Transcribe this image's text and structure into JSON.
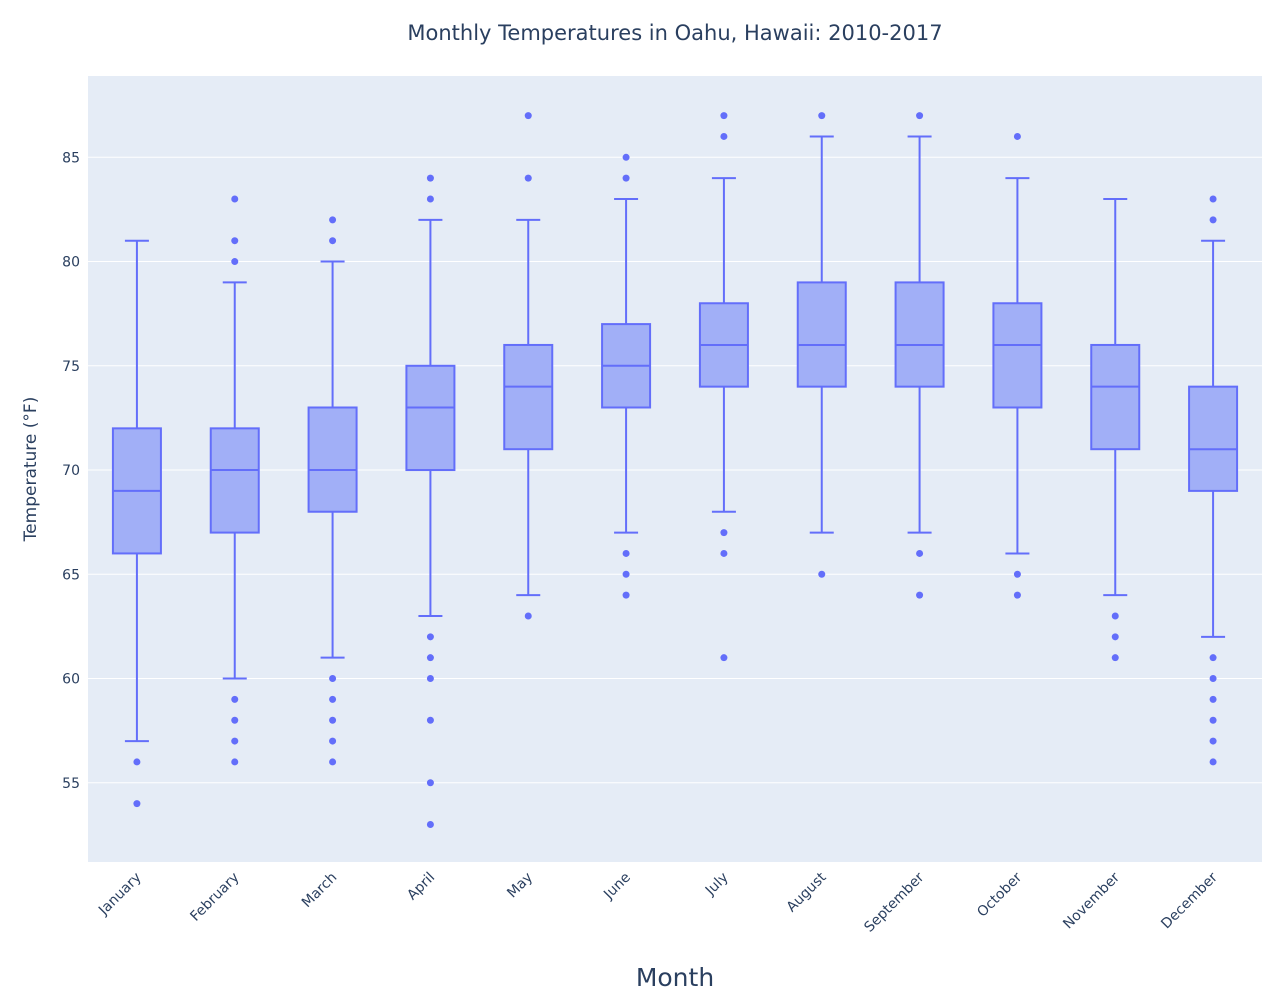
{
  "chart_data": {
    "type": "box",
    "title": "Monthly Temperatures in Oahu, Hawaii: 2010-2017",
    "xlabel": "Month",
    "ylabel": "Temperature (°F)",
    "ylim": [
      51.2,
      88.9
    ],
    "yticks": [
      55,
      60,
      65,
      70,
      75,
      80,
      85
    ],
    "grid": true,
    "legend": "none",
    "colors": {
      "box_fill": "#a1aff7",
      "box_line": "#636efa",
      "plot_bg": "#e5ecf6",
      "grid": "#ffffff",
      "text": "#2a3f5f"
    },
    "categories": [
      "January",
      "February",
      "March",
      "April",
      "May",
      "June",
      "July",
      "August",
      "September",
      "October",
      "November",
      "December"
    ],
    "boxes": [
      {
        "month": "January",
        "lower_fence": 57,
        "q1": 66,
        "median": 69,
        "q3": 72,
        "upper_fence": 81,
        "outliers": [
          56,
          54
        ]
      },
      {
        "month": "February",
        "lower_fence": 60,
        "q1": 67,
        "median": 70,
        "q3": 72,
        "upper_fence": 79,
        "outliers": [
          83,
          81,
          80,
          59,
          58,
          57,
          56
        ]
      },
      {
        "month": "March",
        "lower_fence": 61,
        "q1": 68,
        "median": 70,
        "q3": 73,
        "upper_fence": 80,
        "outliers": [
          82,
          81,
          60,
          59,
          58,
          57,
          56
        ]
      },
      {
        "month": "April",
        "lower_fence": 63,
        "q1": 70,
        "median": 73,
        "q3": 75,
        "upper_fence": 82,
        "outliers": [
          84,
          83,
          62,
          61,
          60,
          58,
          55,
          53
        ]
      },
      {
        "month": "May",
        "lower_fence": 64,
        "q1": 71,
        "median": 74,
        "q3": 76,
        "upper_fence": 82,
        "outliers": [
          87,
          84,
          63
        ]
      },
      {
        "month": "June",
        "lower_fence": 67,
        "q1": 73,
        "median": 75,
        "q3": 77,
        "upper_fence": 83,
        "outliers": [
          85,
          84,
          66,
          65,
          64
        ]
      },
      {
        "month": "July",
        "lower_fence": 68,
        "q1": 74,
        "median": 76,
        "q3": 78,
        "upper_fence": 84,
        "outliers": [
          87,
          86,
          67,
          66,
          61
        ]
      },
      {
        "month": "August",
        "lower_fence": 67,
        "q1": 74,
        "median": 76,
        "q3": 79,
        "upper_fence": 86,
        "outliers": [
          87,
          65
        ]
      },
      {
        "month": "September",
        "lower_fence": 67,
        "q1": 74,
        "median": 76,
        "q3": 79,
        "upper_fence": 86,
        "outliers": [
          87,
          66,
          64
        ]
      },
      {
        "month": "October",
        "lower_fence": 66,
        "q1": 73,
        "median": 76,
        "q3": 78,
        "upper_fence": 84,
        "outliers": [
          86,
          65,
          64
        ]
      },
      {
        "month": "November",
        "lower_fence": 64,
        "q1": 71,
        "median": 74,
        "q3": 76,
        "upper_fence": 83,
        "outliers": [
          63,
          62,
          61
        ]
      },
      {
        "month": "December",
        "lower_fence": 62,
        "q1": 69,
        "median": 71,
        "q3": 74,
        "upper_fence": 81,
        "outliers": [
          83,
          82,
          61,
          60,
          59,
          58,
          57,
          56
        ]
      }
    ]
  }
}
